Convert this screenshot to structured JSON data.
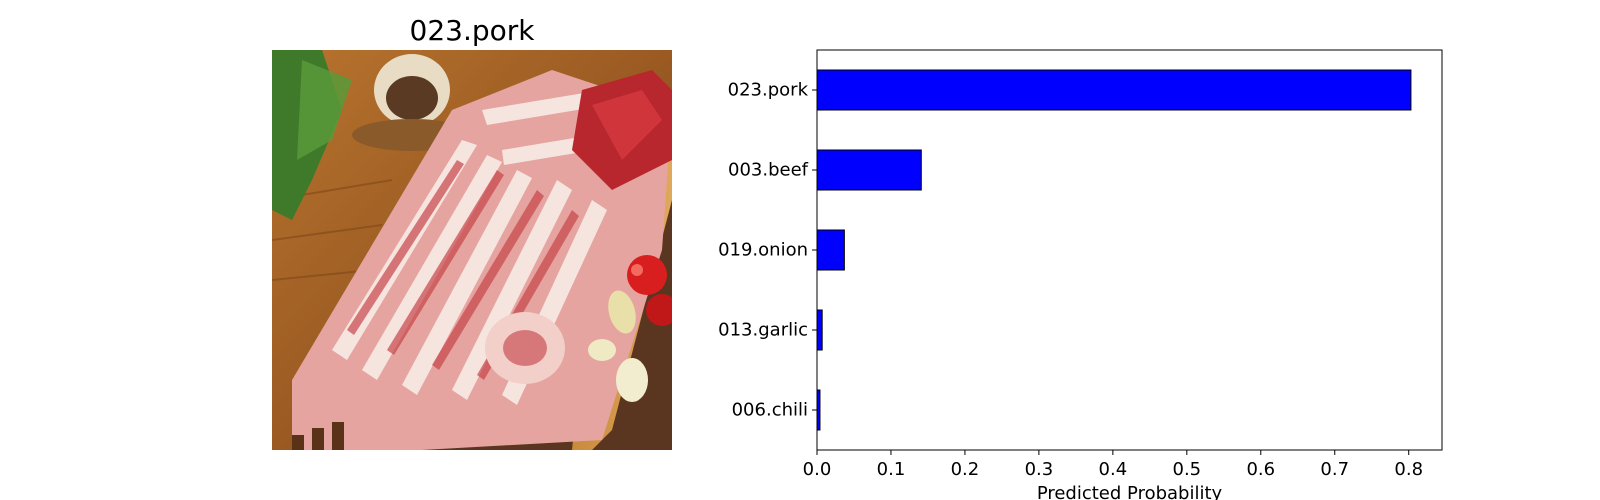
{
  "image_panel": {
    "title": "023.pork",
    "photo_description_icon": "pork-belly-slices-photo"
  },
  "chart_data": {
    "type": "bar",
    "orientation": "horizontal",
    "categories": [
      "023.pork",
      "003.beef",
      "019.onion",
      "013.garlic",
      "006.chili"
    ],
    "values": [
      0.803,
      0.141,
      0.037,
      0.007,
      0.004
    ],
    "xlabel": "Predicted Probability",
    "ylabel": "",
    "xlim": [
      0.0,
      0.845
    ],
    "xticks": [
      0.0,
      0.1,
      0.2,
      0.3,
      0.4,
      0.5,
      0.6,
      0.7,
      0.8
    ],
    "xtick_labels": [
      "0.0",
      "0.1",
      "0.2",
      "0.3",
      "0.4",
      "0.5",
      "0.6",
      "0.7",
      "0.8"
    ],
    "bar_color": "#0000ff",
    "edge_color": "#000000",
    "grid": false,
    "legend": "none"
  }
}
